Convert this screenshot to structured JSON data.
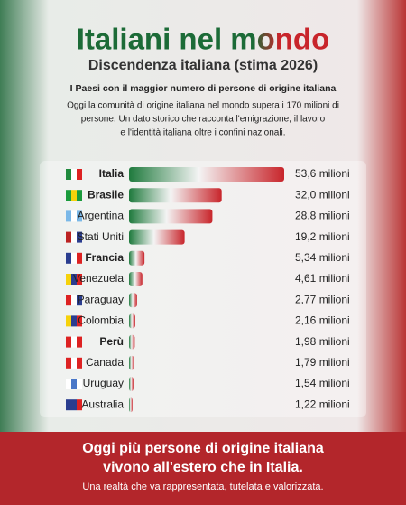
{
  "chart_data": {
    "type": "bar",
    "orientation": "horizontal",
    "title": "Italiani nel mondo",
    "subtitle": "Discendenza italiana (stima 2026)",
    "intro_heading": "I Paesi con il maggior numero di persone di origine italiana",
    "intro_lines": [
      "Oggi la comunità di origine italiana nel mondo supera i 170 milioni di",
      "persone. Un dato storico che racconta l'emigrazione, il lavoro",
      "e l'identità italiana oltre i confini nazionali."
    ],
    "categories": [
      "Italia",
      "Brasile",
      "Argentina",
      "Stati Uniti",
      "Francia",
      "Venezuela",
      "Paraguay",
      "Colombia",
      "Perù",
      "Canada",
      "Uruguay",
      "Australia"
    ],
    "values": [
      53.6,
      32.0,
      28.8,
      19.2,
      5.34,
      4.61,
      2.77,
      2.16,
      1.98,
      1.79,
      1.54,
      1.22
    ],
    "value_labels": [
      "53,6 milioni",
      "32,0 milioni",
      "28,8 milioni",
      "19,2 milioni",
      "5,34 milioni",
      "4,61 milioni",
      "2,77 milioni",
      "2,16 milioni",
      "1,98 milioni",
      "1,79 milioni",
      "1,54 milioni",
      "1,22 milioni"
    ],
    "footer_lines": [
      "Oggi più persone di origine italiana",
      "vivono all'estero che in Italia."
    ],
    "footer_note": "Una realtà che va rappresentata, tutelata e valorizzata."
  }
}
